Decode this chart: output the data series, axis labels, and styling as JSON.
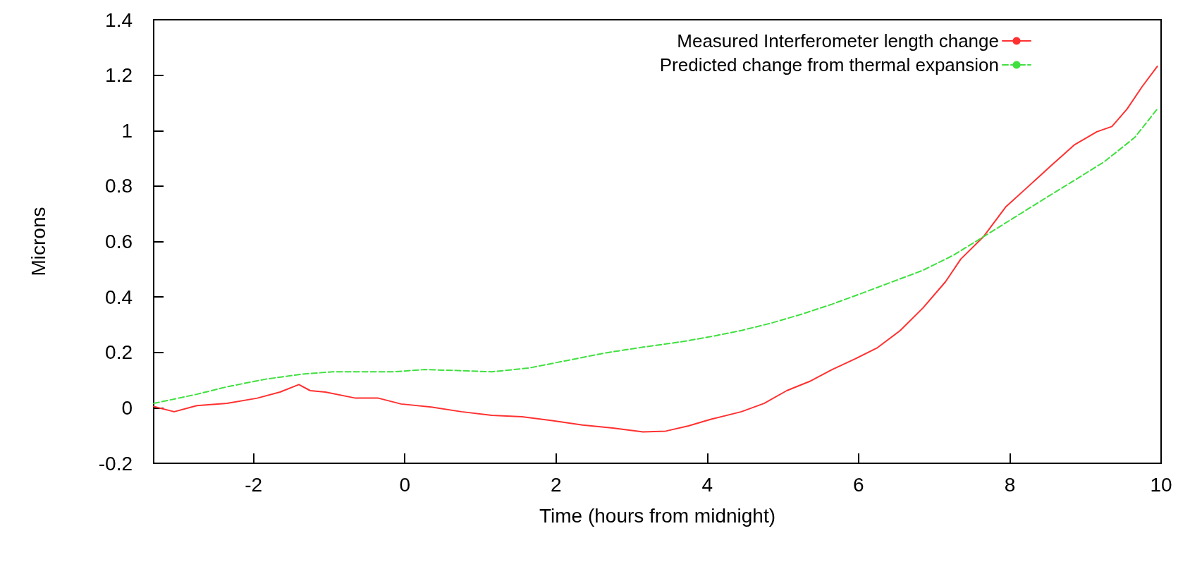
{
  "chart_data": {
    "type": "line",
    "xlabel": "Time (hours from midnight)",
    "ylabel": "Microns",
    "xlim": [
      -3.32,
      10
    ],
    "xticks": [
      -2,
      0,
      2,
      4,
      6,
      8,
      10
    ],
    "ylim": [
      -0.2,
      1.4
    ],
    "yticks": [
      -0.2,
      0,
      0.2,
      0.4,
      0.6,
      0.8,
      1,
      1.2,
      1.4
    ],
    "legend": "top right",
    "grid": false,
    "marker": "none",
    "series": [
      {
        "name": "Measured Interferometer length change",
        "color": "#ff3030",
        "line_style": "solid",
        "x": [
          -3.32,
          -3.05,
          -2.75,
          -2.35,
          -1.95,
          -1.65,
          -1.4,
          -1.25,
          -1.05,
          -0.65,
          -0.35,
          -0.05,
          0.35,
          0.75,
          1.15,
          1.55,
          1.95,
          2.35,
          2.75,
          3.15,
          3.45,
          3.75,
          4.05,
          4.45,
          4.75,
          5.05,
          5.35,
          5.65,
          5.95,
          6.25,
          6.55,
          6.85,
          7.15,
          7.35,
          7.65,
          7.95,
          8.25,
          8.55,
          8.85,
          9.15,
          9.35,
          9.55,
          9.75,
          9.95
        ],
        "values": [
          0.005,
          -0.014,
          0.008,
          0.016,
          0.035,
          0.057,
          0.084,
          0.062,
          0.057,
          0.035,
          0.035,
          0.014,
          0.003,
          -0.014,
          -0.027,
          -0.032,
          -0.046,
          -0.062,
          -0.073,
          -0.087,
          -0.084,
          -0.065,
          -0.041,
          -0.014,
          0.016,
          0.062,
          0.095,
          0.138,
          0.176,
          0.217,
          0.279,
          0.36,
          0.455,
          0.536,
          0.617,
          0.726,
          0.8,
          0.875,
          0.948,
          0.996,
          1.015,
          1.078,
          1.159,
          1.232
        ]
      },
      {
        "name": "Predicted change from thermal expansion",
        "color": "#40e040",
        "line_style": "dashed",
        "x": [
          -3.32,
          -2.75,
          -2.35,
          -1.85,
          -1.35,
          -0.95,
          -0.55,
          -0.15,
          0.25,
          0.65,
          1.15,
          1.65,
          2.15,
          2.65,
          3.15,
          3.65,
          4.05,
          4.45,
          4.85,
          5.25,
          5.65,
          6.05,
          6.45,
          6.85,
          7.25,
          7.65,
          8.05,
          8.45,
          8.85,
          9.25,
          9.65,
          9.95
        ],
        "values": [
          0.016,
          0.049,
          0.076,
          0.103,
          0.122,
          0.13,
          0.13,
          0.13,
          0.138,
          0.135,
          0.13,
          0.144,
          0.171,
          0.198,
          0.219,
          0.238,
          0.257,
          0.279,
          0.306,
          0.338,
          0.374,
          0.414,
          0.455,
          0.496,
          0.55,
          0.617,
          0.685,
          0.753,
          0.82,
          0.888,
          0.975,
          1.078
        ]
      }
    ]
  }
}
